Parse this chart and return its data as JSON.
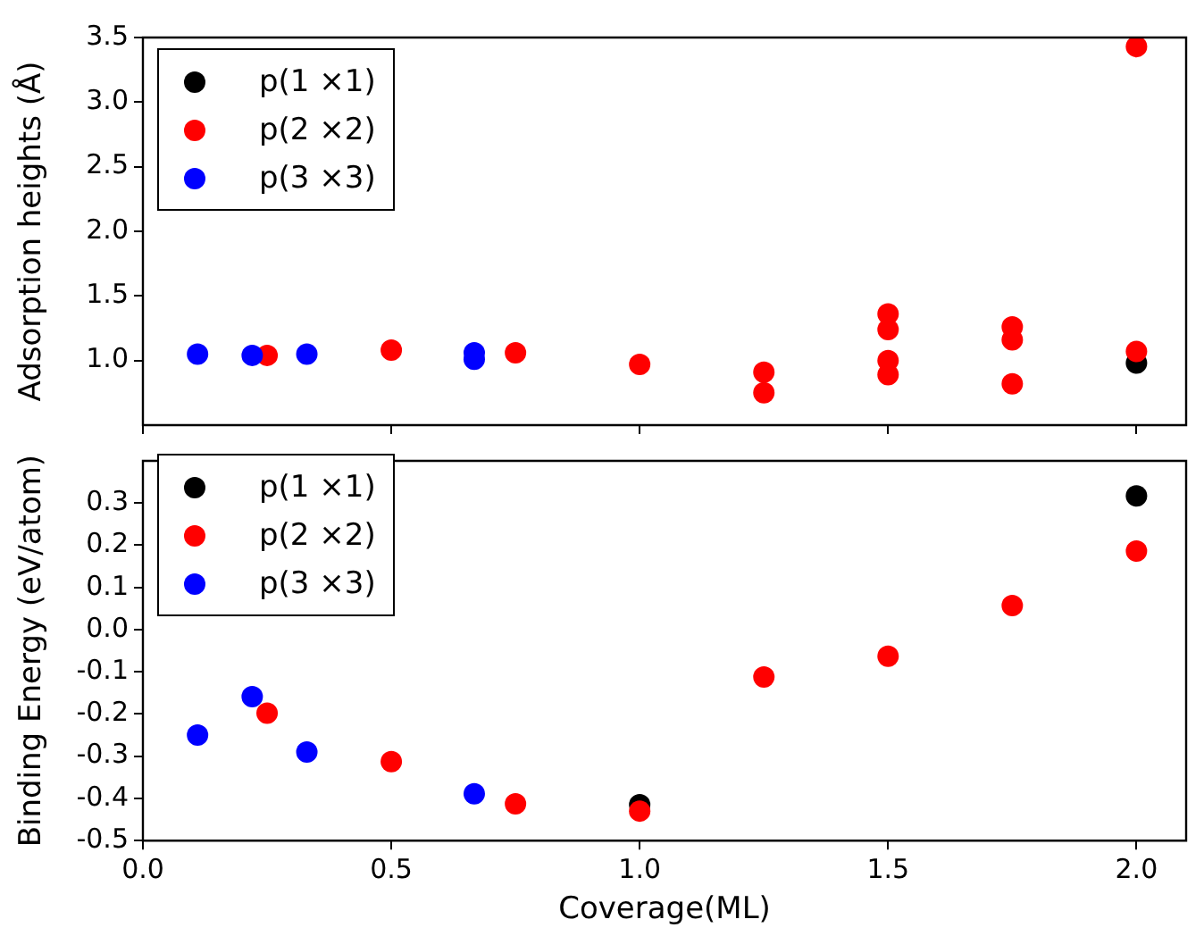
{
  "chart_data": [
    {
      "type": "scatter",
      "ylabel": "Adsorption heights (Å)",
      "xlim": [
        0,
        2.1
      ],
      "xticks": [
        {
          "value": 0,
          "label": null
        },
        {
          "value": 0.5,
          "label": null
        },
        {
          "value": 1,
          "label": null
        },
        {
          "value": 1.5,
          "label": null
        },
        {
          "value": 2,
          "label": null
        }
      ],
      "ylim": [
        0.5,
        3.5
      ],
      "yticks": [
        {
          "value": 1,
          "label": "1.0"
        },
        1.5,
        {
          "value": 2,
          "label": "2.0"
        },
        2.5,
        {
          "value": 3,
          "label": "3.0"
        },
        3.5
      ],
      "tick_labels": "y",
      "marker": "circle",
      "legend": "top left",
      "grid": false,
      "series": [
        {
          "name": "p(1 ×1)",
          "color": "#000000",
          "x": [
            2.0
          ],
          "values": [
            0.98
          ]
        },
        {
          "name": "p(2 ×2)",
          "color": "#ff0000",
          "x": [
            0.25,
            0.5,
            0.75,
            1.0,
            1.25,
            1.25,
            1.5,
            1.5,
            1.5,
            1.5,
            1.75,
            1.75,
            1.75,
            2.0,
            2.0
          ],
          "values": [
            1.04,
            1.08,
            1.06,
            0.97,
            0.91,
            0.75,
            1.36,
            1.24,
            1.0,
            0.89,
            1.26,
            1.16,
            0.82,
            3.43,
            1.07
          ]
        },
        {
          "name": "p(3 ×3)",
          "color": "#0000ff",
          "x": [
            0.11,
            0.22,
            0.33,
            0.667,
            0.667
          ],
          "values": [
            1.05,
            1.04,
            1.05,
            1.06,
            1.01
          ]
        }
      ]
    },
    {
      "type": "scatter",
      "xlabel": "Coverage(ML)",
      "ylabel": "Binding Energy (eV/atom)",
      "xlim": [
        0,
        2.1
      ],
      "xticks": [
        {
          "value": 0,
          "label": "0.0"
        },
        0.5,
        {
          "value": 1,
          "label": "1.0"
        },
        1.5,
        {
          "value": 2,
          "label": "2.0"
        }
      ],
      "ylim": [
        -0.5,
        0.4
      ],
      "yticks": [
        -0.5,
        -0.4,
        -0.3,
        -0.2,
        -0.1,
        {
          "value": 0,
          "label": "0.0"
        },
        0.1,
        0.2,
        0.3
      ],
      "marker": "circle",
      "legend": "top left",
      "grid": false,
      "series": [
        {
          "name": "p(1 ×1)",
          "color": "#000000",
          "x": [
            1.0,
            2.0
          ],
          "values": [
            -0.415,
            0.317
          ]
        },
        {
          "name": "p(2 ×2)",
          "color": "#ff0000",
          "x": [
            0.25,
            0.5,
            0.75,
            1.0,
            1.25,
            1.5,
            1.75,
            2.0
          ],
          "values": [
            -0.198,
            -0.313,
            -0.413,
            -0.43,
            -0.112,
            -0.063,
            0.057,
            0.186
          ]
        },
        {
          "name": "p(3 ×3)",
          "color": "#0000ff",
          "x": [
            0.11,
            0.22,
            0.33,
            0.667
          ],
          "values": [
            -0.25,
            -0.159,
            -0.29,
            -0.389
          ]
        }
      ]
    }
  ]
}
